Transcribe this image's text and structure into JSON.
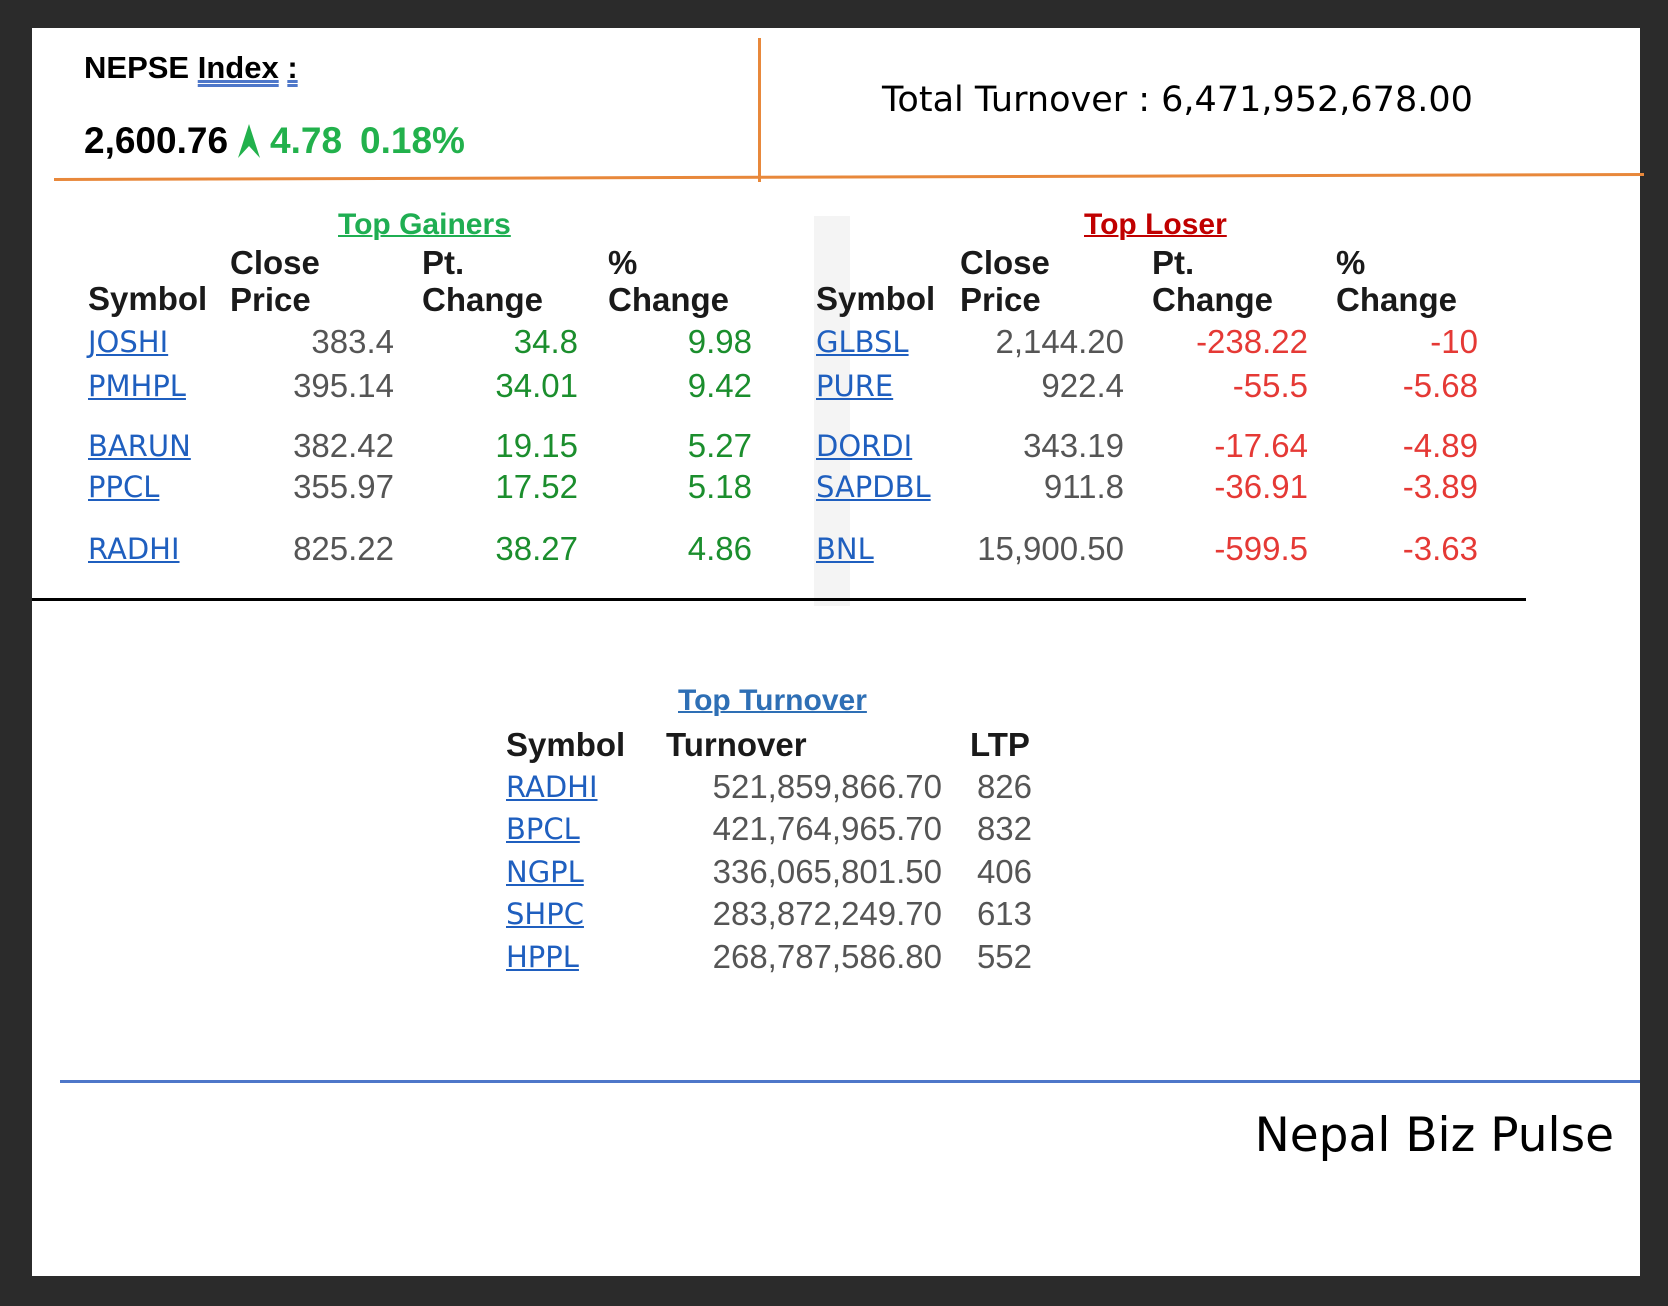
{
  "header": {
    "index_label_prefix": "NEPSE",
    "index_label_word": "Index",
    "index_label_suffix": ":",
    "index_value": "2,600.76",
    "index_point_change": "4.78",
    "index_percent_change": "0.18%",
    "total_turnover": "Total Turnover : 6,471,952,678.00"
  },
  "gainers": {
    "title": "Top Gainers",
    "headers": {
      "symbol": "Symbol",
      "close_1": "Close",
      "close_2": "Price",
      "pt_1": "Pt.",
      "pt_2": "Change",
      "pct_1": "%",
      "pct_2": "Change"
    },
    "rows": [
      {
        "symbol": "JOSHI",
        "close": "383.4",
        "pt": "34.8",
        "pct": "9.98"
      },
      {
        "symbol": "PMHPL",
        "close": "395.14",
        "pt": "34.01",
        "pct": "9.42"
      },
      {
        "symbol": "BARUN",
        "close": "382.42",
        "pt": "19.15",
        "pct": "5.27"
      },
      {
        "symbol": "PPCL",
        "close": "355.97",
        "pt": "17.52",
        "pct": "5.18"
      },
      {
        "symbol": "RADHI",
        "close": "825.22",
        "pt": "38.27",
        "pct": "4.86"
      }
    ]
  },
  "losers": {
    "title": "Top Loser",
    "headers": {
      "symbol": "Symbol",
      "close_1": "Close",
      "close_2": "Price",
      "pt_1": "Pt.",
      "pt_2": "Change",
      "pct_1": "%",
      "pct_2": "Change"
    },
    "rows": [
      {
        "symbol": "GLBSL",
        "close": "2,144.20",
        "pt": "-238.22",
        "pct": "-10"
      },
      {
        "symbol": "PURE",
        "close": "922.4",
        "pt": "-55.5",
        "pct": "-5.68"
      },
      {
        "symbol": "DORDI",
        "close": "343.19",
        "pt": "-17.64",
        "pct": "-4.89"
      },
      {
        "symbol": "SAPDBL",
        "close": "911.8",
        "pt": "-36.91",
        "pct": "-3.89"
      },
      {
        "symbol": "BNL",
        "close": "15,900.50",
        "pt": "-599.5",
        "pct": "-3.63"
      }
    ]
  },
  "turnover": {
    "title": "Top Turnover",
    "headers": {
      "symbol": "Symbol",
      "turnover": "Turnover",
      "ltp": "LTP"
    },
    "rows": [
      {
        "symbol": "RADHI",
        "turnover": "521,859,866.70",
        "ltp": "826"
      },
      {
        "symbol": "BPCL",
        "turnover": "421,764,965.70",
        "ltp": "832"
      },
      {
        "symbol": "NGPL",
        "turnover": "336,065,801.50",
        "ltp": "406"
      },
      {
        "symbol": "SHPC",
        "turnover": "283,872,249.70",
        "ltp": "613"
      },
      {
        "symbol": "HPPL",
        "turnover": "268,787,586.80",
        "ltp": "552"
      }
    ]
  },
  "footer": {
    "brand": "Nepal Biz Pulse"
  },
  "colors": {
    "gain": "#1b8e2d",
    "loss": "#e53935",
    "link": "#1f5fbf",
    "accent_orange": "#e8883b"
  },
  "icons": {
    "index_trend": "arrow-up-icon"
  }
}
